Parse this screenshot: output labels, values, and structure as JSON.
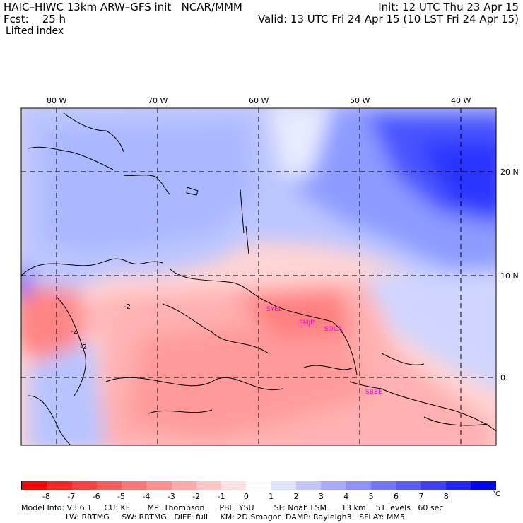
{
  "header": {
    "model": "HAIC–HIWC 13km ARW–GFS init   NCAR/MMM",
    "fcst": "Fcst:    25 h",
    "field": "Lifted index",
    "init": "Init: 12 UTC Thu 23 Apr 15",
    "valid": "Valid: 13 UTC Fri 24 Apr 15 (10 LST Fri 24 Apr 15)"
  },
  "map": {
    "lon_labels": [
      "80 W",
      "70 W",
      "60 W",
      "50 W",
      "40 W"
    ],
    "lat_labels": [
      "20 N",
      "10 N",
      "0"
    ],
    "stations": [
      "SYEL",
      "SMJP",
      "SOCA",
      "SBBE"
    ],
    "contour_labels": [
      "-2",
      "-2",
      "-2"
    ]
  },
  "colorbar": {
    "unit": "°C",
    "ticks": [
      "-8",
      "-7",
      "-6",
      "-5",
      "-4",
      "-3",
      "-2",
      "-1",
      "0",
      "1",
      "2",
      "3",
      "4",
      "5",
      "6",
      "7",
      "8"
    ],
    "colors": [
      "#ff0000",
      "#ff2424",
      "#ff4040",
      "#ff5a5a",
      "#ff7474",
      "#ff8f8f",
      "#ffa9a9",
      "#ffc4c4",
      "#ffe0e0",
      "#ffffff",
      "#e0e0ff",
      "#c4c4ff",
      "#a9a9ff",
      "#8f8fff",
      "#7474ff",
      "#5a5aff",
      "#4040ff",
      "#2424ff",
      "#0000ff"
    ]
  },
  "footer": {
    "line1": "Model Info: V3.6.1     CU: KF       MP: Thompson      PBL: YSU        SF: Noah LSM      13 km    51 levels   60 sec",
    "line2": "                  LW: RRTMG     SW: RRTMG   DIFF: full     KM: 2D Smagor  DAMP: Rayleigh3   SFLAY: MM5"
  }
}
